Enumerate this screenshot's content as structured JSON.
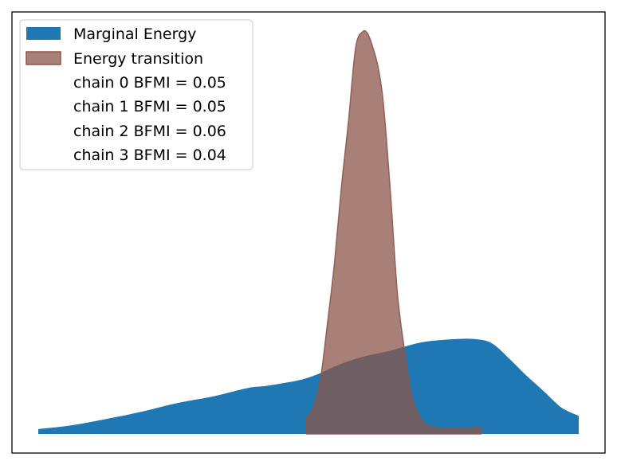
{
  "chart_data": {
    "type": "area",
    "title": "",
    "xlabel": "",
    "ylabel": "",
    "grid": false,
    "legend_position": "top-left",
    "x_range": [
      -8.0,
      7.5
    ],
    "y_range": [
      0,
      1.0
    ],
    "series": [
      {
        "name": "Marginal Energy",
        "color": "#1f77b4",
        "opacity": 1.0,
        "x": [
          -8.0,
          -7.0,
          -6.0,
          -5.0,
          -4.0,
          -3.0,
          -2.0,
          -1.5,
          -1.0,
          -0.5,
          0.0,
          0.5,
          1.0,
          1.5,
          2.0,
          2.5,
          3.0,
          3.5,
          4.0,
          4.5,
          5.0,
          5.5,
          6.0,
          6.5,
          7.0,
          7.5
        ],
        "y": [
          0.012,
          0.022,
          0.038,
          0.056,
          0.077,
          0.093,
          0.114,
          0.119,
          0.126,
          0.134,
          0.148,
          0.168,
          0.184,
          0.196,
          0.205,
          0.217,
          0.228,
          0.233,
          0.236,
          0.236,
          0.226,
          0.188,
          0.145,
          0.106,
          0.066,
          0.045
        ]
      },
      {
        "name": "Energy transition",
        "color": "#8c564b",
        "opacity": 0.75,
        "x": [
          -0.3,
          -0.1,
          0.1,
          0.3,
          0.5,
          0.7,
          0.9,
          1.1,
          1.3,
          1.45,
          1.6,
          1.75,
          1.9,
          2.1,
          2.3,
          2.5,
          2.7,
          2.9,
          3.1,
          3.3,
          3.6,
          4.0,
          4.4,
          4.7
        ],
        "y": [
          0.04,
          0.07,
          0.14,
          0.28,
          0.43,
          0.62,
          0.78,
          0.96,
          1.0,
          0.995,
          0.96,
          0.91,
          0.82,
          0.6,
          0.35,
          0.21,
          0.1,
          0.05,
          0.025,
          0.017,
          0.014,
          0.013,
          0.015,
          0.016
        ]
      }
    ],
    "legend": {
      "entries": [
        {
          "label": "Marginal Energy",
          "swatch": "#1f77b4"
        },
        {
          "label": "Energy transition",
          "swatch": "#8c564b"
        },
        {
          "label": "chain  0 BFMI = 0.05",
          "swatch": ""
        },
        {
          "label": "chain  1 BFMI = 0.05",
          "swatch": ""
        },
        {
          "label": "chain  2 BFMI = 0.06",
          "swatch": ""
        },
        {
          "label": "chain  3 BFMI = 0.04",
          "swatch": ""
        }
      ]
    }
  }
}
